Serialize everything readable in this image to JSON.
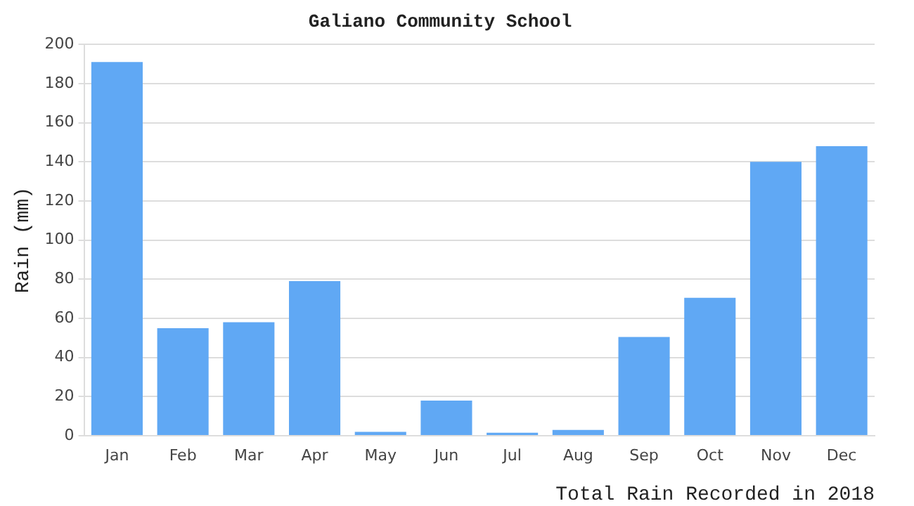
{
  "chart_data": {
    "type": "bar",
    "title": "Galiano Community School",
    "xlabel": "Total Rain Recorded in 2018",
    "ylabel": "Rain (mm)",
    "categories": [
      "Jan",
      "Feb",
      "Mar",
      "Apr",
      "May",
      "Jun",
      "Jul",
      "Aug",
      "Sep",
      "Oct",
      "Nov",
      "Dec"
    ],
    "values": [
      191,
      55,
      58,
      79,
      2,
      18,
      1.5,
      3,
      50.5,
      70.5,
      140,
      148
    ],
    "color": "#60a8f4",
    "ylim": [
      0,
      200
    ],
    "yticks": [
      0,
      20,
      40,
      60,
      80,
      100,
      120,
      140,
      160,
      180,
      200
    ],
    "grid": "y",
    "legend": false
  }
}
